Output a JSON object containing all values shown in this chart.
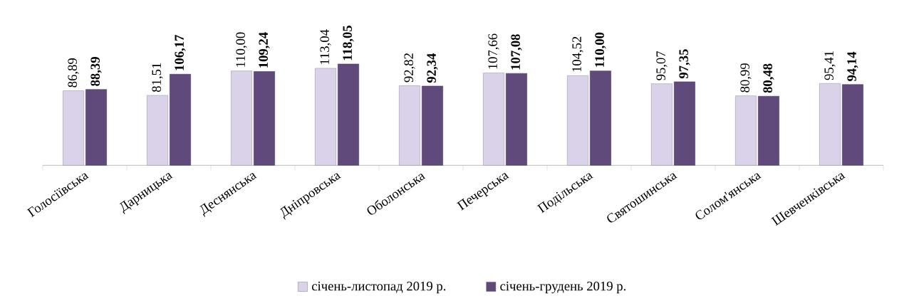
{
  "chart_data": {
    "type": "bar",
    "categories": [
      "Голосіївська",
      "Дарницька",
      "Деснянська",
      "Дніпровська",
      "Оболонська",
      "Печерська",
      "Подільська",
      "Святошинська",
      "Солом'янська",
      "Шевченківська"
    ],
    "series": [
      {
        "name": "січень-листопад 2019 р.",
        "color": "#d9d2e9",
        "values": [
          86.89,
          81.51,
          110.0,
          113.04,
          92.82,
          107.66,
          104.52,
          95.07,
          80.99,
          95.41
        ],
        "value_labels": [
          "86,89",
          "81,51",
          "110,00",
          "113,04",
          "92,82",
          "107,66",
          "104,52",
          "95,07",
          "80,99",
          "95,41"
        ]
      },
      {
        "name": "січень-грудень 2019 р.",
        "color": "#604a7b",
        "values": [
          88.39,
          106.17,
          109.24,
          118.05,
          92.34,
          107.08,
          110.0,
          97.35,
          80.48,
          94.14
        ],
        "value_labels": [
          "**88,39**",
          "**106,17**",
          "**109,24**",
          "**118,05**",
          "**92,34**",
          "**107,08**",
          "**110,00**",
          "**97,35**",
          "**80,48**",
          "**94,14**"
        ]
      }
    ],
    "legend": "bottom"
  }
}
